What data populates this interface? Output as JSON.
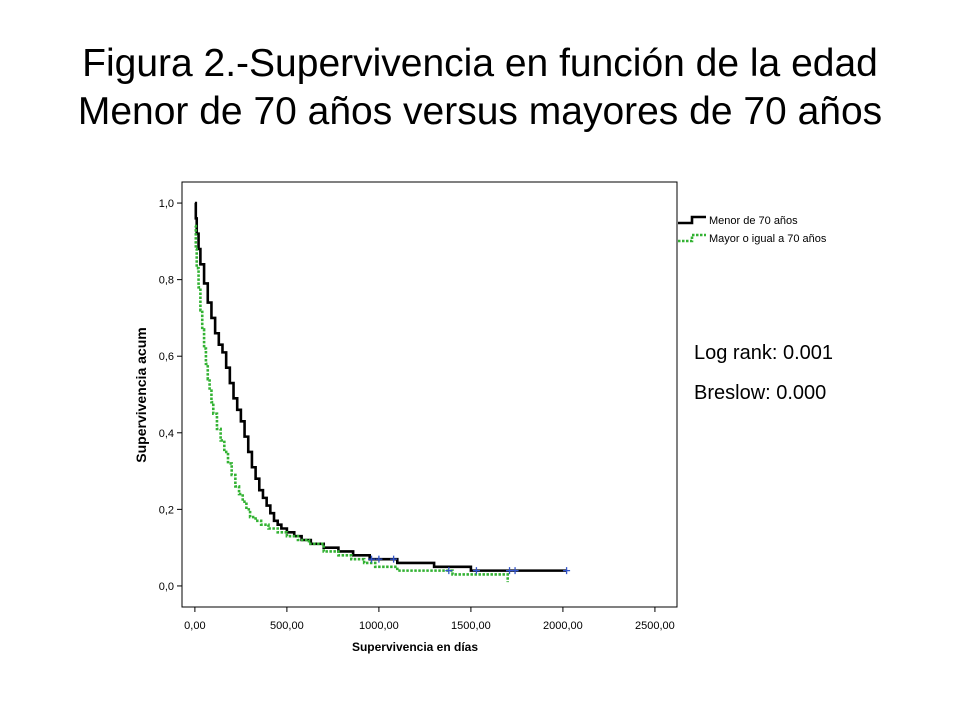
{
  "slide": {
    "title_line1": "Figura 2.-Supervivencia en función de la edad",
    "title_line2": "Menor de 70 años versus mayores de 70 años"
  },
  "stats": {
    "log_rank": "Log rank: 0.001",
    "breslow": "Breslow: 0.000"
  },
  "colors": {
    "series1": "#000000",
    "series2": "#33b233",
    "censor": "#3355cc",
    "frame": "#000000",
    "plot_bg": "#ffffff"
  },
  "chart_data": {
    "type": "line",
    "step": true,
    "xlabel": "Supervivencia en días",
    "ylabel": "Supervivencia acum",
    "xlim": [
      -70,
      2620
    ],
    "ylim": [
      -0.055,
      1.055
    ],
    "xticks": [
      0,
      500,
      1000,
      1500,
      2000,
      2500
    ],
    "xtick_labels": [
      "0,00",
      "500,00",
      "1000,00",
      "1500,00",
      "2000,00",
      "2500,00"
    ],
    "yticks": [
      0,
      0.2,
      0.4,
      0.6,
      0.8,
      1.0
    ],
    "ytick_labels": [
      "0,0",
      "0,2",
      "0,4",
      "0,6",
      "0,8",
      "1,0"
    ],
    "legend_position": "outside-top-right",
    "series": [
      {
        "name": "Menor de 70 años",
        "style": "solid",
        "x": [
          0,
          5,
          10,
          20,
          30,
          50,
          70,
          90,
          110,
          130,
          150,
          170,
          190,
          210,
          230,
          250,
          270,
          290,
          310,
          330,
          350,
          370,
          390,
          410,
          430,
          450,
          470,
          500,
          540,
          580,
          630,
          700,
          780,
          860,
          950,
          1050,
          1100,
          1150,
          1300,
          1400,
          1500,
          1600,
          1700,
          1800,
          1900,
          2020
        ],
        "y": [
          1.0,
          0.96,
          0.92,
          0.88,
          0.84,
          0.79,
          0.74,
          0.7,
          0.66,
          0.63,
          0.61,
          0.57,
          0.53,
          0.49,
          0.46,
          0.43,
          0.39,
          0.35,
          0.31,
          0.28,
          0.25,
          0.23,
          0.21,
          0.19,
          0.17,
          0.16,
          0.15,
          0.14,
          0.13,
          0.12,
          0.11,
          0.1,
          0.09,
          0.08,
          0.07,
          0.07,
          0.06,
          0.06,
          0.05,
          0.05,
          0.04,
          0.04,
          0.04,
          0.04,
          0.04,
          0.04
        ]
      },
      {
        "name": "Mayor o igual a 70 años",
        "style": "dotted",
        "x": [
          0,
          5,
          10,
          20,
          30,
          40,
          50,
          60,
          70,
          80,
          90,
          100,
          120,
          140,
          160,
          180,
          200,
          220,
          240,
          260,
          280,
          300,
          330,
          360,
          400,
          450,
          500,
          560,
          620,
          700,
          780,
          850,
          920,
          980,
          1100,
          1200,
          1300,
          1400,
          1500,
          1600,
          1700
        ],
        "y": [
          0.94,
          0.88,
          0.83,
          0.78,
          0.72,
          0.67,
          0.62,
          0.58,
          0.54,
          0.51,
          0.48,
          0.45,
          0.41,
          0.38,
          0.35,
          0.32,
          0.29,
          0.26,
          0.24,
          0.22,
          0.2,
          0.18,
          0.17,
          0.16,
          0.15,
          0.14,
          0.13,
          0.12,
          0.11,
          0.09,
          0.08,
          0.07,
          0.06,
          0.05,
          0.04,
          0.04,
          0.04,
          0.03,
          0.03,
          0.03,
          0.01
        ]
      }
    ],
    "censor_marks": [
      {
        "x": 960,
        "y": 0.07
      },
      {
        "x": 1000,
        "y": 0.07
      },
      {
        "x": 1080,
        "y": 0.07
      },
      {
        "x": 1380,
        "y": 0.04
      },
      {
        "x": 1530,
        "y": 0.04
      },
      {
        "x": 1710,
        "y": 0.04
      },
      {
        "x": 1740,
        "y": 0.04
      },
      {
        "x": 2020,
        "y": 0.04
      }
    ]
  }
}
